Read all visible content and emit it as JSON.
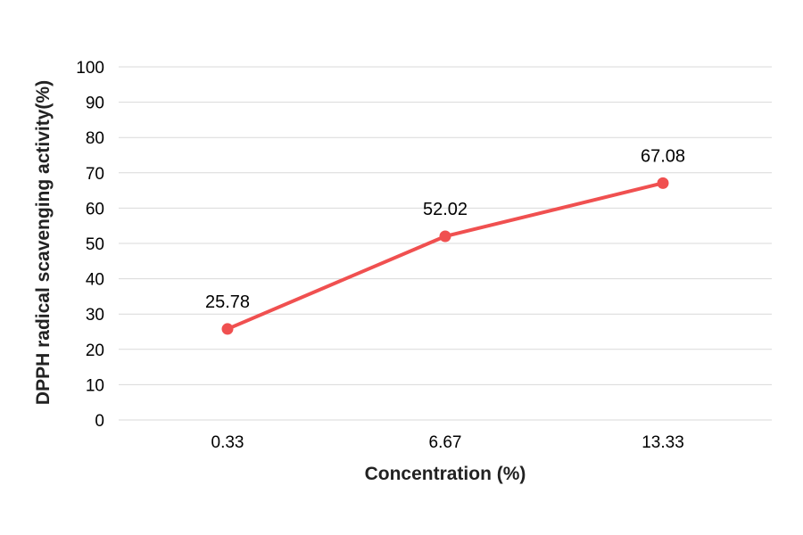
{
  "chart_data": {
    "type": "line",
    "title": "",
    "xlabel": "Concentration (%)",
    "ylabel": "DPPH radical scavenging activity(%)",
    "categories": [
      "0.33",
      "6.67",
      "13.33"
    ],
    "series": [
      {
        "values": [
          25.78,
          52.02,
          67.08
        ],
        "data_labels": [
          "25.78",
          "52.02",
          "67.08"
        ],
        "color": "#f05050"
      }
    ],
    "ylim": [
      0,
      100
    ],
    "yticks": [
      "0",
      "10",
      "20",
      "30",
      "40",
      "50",
      "60",
      "70",
      "80",
      "90",
      "100"
    ],
    "grid": true,
    "legend": "none"
  }
}
